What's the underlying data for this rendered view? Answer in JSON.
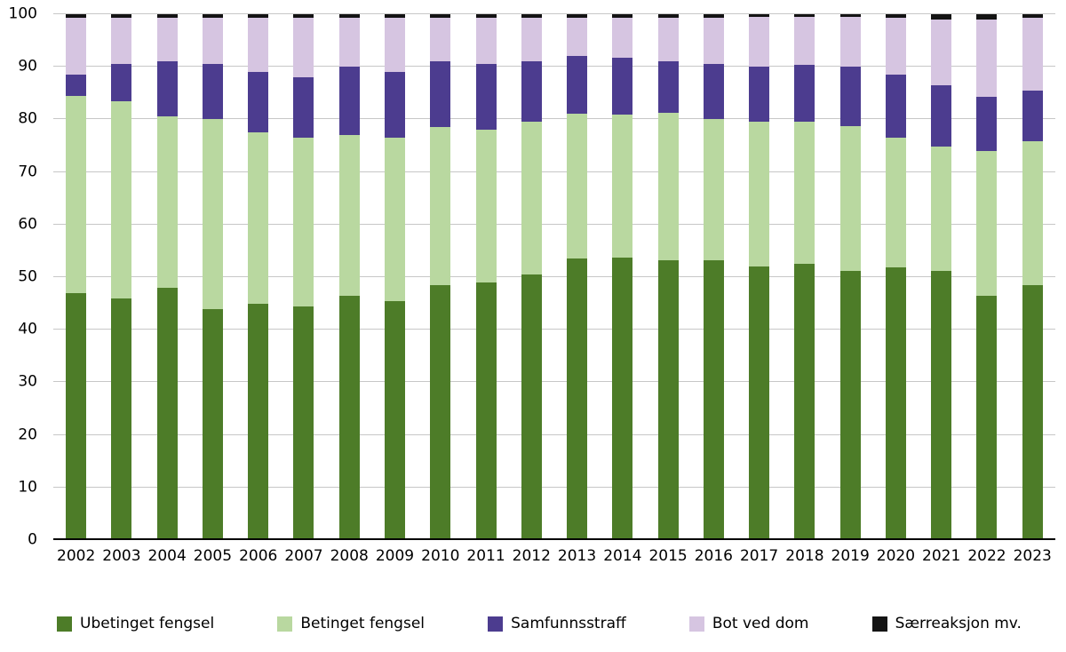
{
  "chart_data": {
    "type": "bar",
    "subtype": "stacked-100",
    "title": "",
    "xlabel": "",
    "ylabel": "",
    "ylim": [
      0,
      100
    ],
    "yticks": [
      0,
      10,
      20,
      30,
      40,
      50,
      60,
      70,
      80,
      90,
      100
    ],
    "grid": true,
    "legend_position": "bottom",
    "categories": [
      "2002",
      "2003",
      "2004",
      "2005",
      "2006",
      "2007",
      "2008",
      "2009",
      "2010",
      "2011",
      "2012",
      "2013",
      "2014",
      "2015",
      "2016",
      "2017",
      "2018",
      "2019",
      "2020",
      "2021",
      "2022",
      "2023"
    ],
    "series": [
      {
        "name": "Ubetinget fengsel",
        "color": "#4d7c28",
        "values": [
          47,
          46,
          48,
          44,
          45,
          44.5,
          46.5,
          45.5,
          48.5,
          49,
          50.5,
          53.5,
          53.8,
          53.2,
          53.2,
          52,
          52.5,
          51.2,
          51.8,
          51.2,
          46.5,
          48.5
        ]
      },
      {
        "name": "Betinget fengsel",
        "color": "#b9d8a0",
        "values": [
          37.5,
          37.5,
          32.5,
          36,
          32.5,
          32,
          30.5,
          31,
          30,
          29,
          29,
          27.5,
          27.2,
          28,
          26.8,
          27.5,
          27,
          27.6,
          24.7,
          23.6,
          27.5,
          27.3
        ]
      },
      {
        "name": "Samfunnsstraff",
        "color": "#4c3c8f",
        "values": [
          4,
          7,
          10.5,
          10.5,
          11.5,
          11.5,
          13,
          12.5,
          12.5,
          12.5,
          11.5,
          11,
          10.8,
          9.8,
          10.5,
          10.5,
          10.8,
          11.2,
          12,
          11.7,
          10.3,
          9.7
        ]
      },
      {
        "name": "Bot ved dom",
        "color": "#d6c5e1",
        "values": [
          10.8,
          8.8,
          8.3,
          8.8,
          10.3,
          11.3,
          9.3,
          10.3,
          8.3,
          8.8,
          8.3,
          7.3,
          7.5,
          8.3,
          8.8,
          9.5,
          9.2,
          9.5,
          10.8,
          12.5,
          14.7,
          13.8
        ]
      },
      {
        "name": "Særreaksjon mv.",
        "color": "#141414",
        "values": [
          0.7,
          0.7,
          0.7,
          0.7,
          0.7,
          0.7,
          0.7,
          0.7,
          0.7,
          0.7,
          0.7,
          0.7,
          0.7,
          0.7,
          0.7,
          0.5,
          0.5,
          0.5,
          0.7,
          1,
          1,
          0.7
        ]
      }
    ]
  }
}
